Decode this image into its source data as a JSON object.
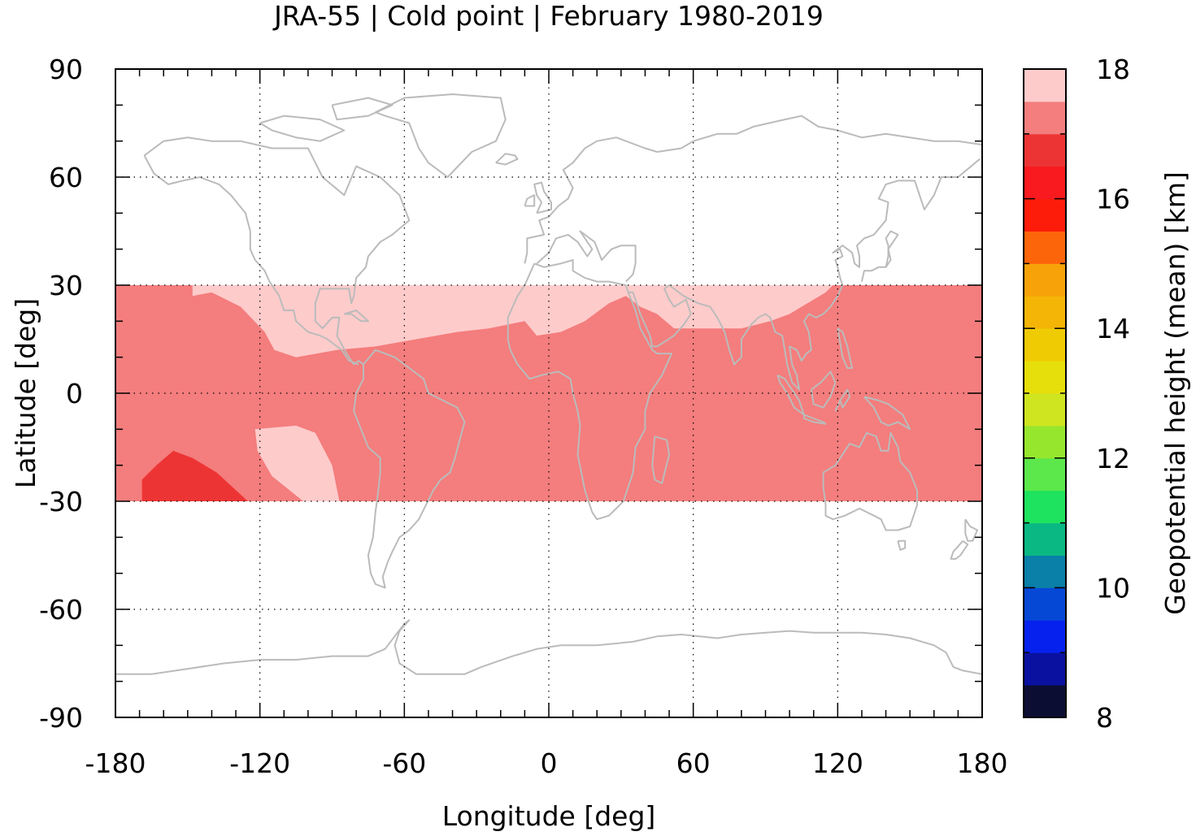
{
  "chart_data": {
    "type": "heatmap",
    "title": "JRA-55 | Cold point | February 1980-2019",
    "xlabel": "Longitude [deg]",
    "ylabel": "Latitude [deg]",
    "xlim": [
      -180,
      180
    ],
    "ylim": [
      -90,
      90
    ],
    "x_ticks": [
      -180,
      -120,
      -60,
      0,
      60,
      120,
      180
    ],
    "y_ticks": [
      -90,
      -60,
      -30,
      0,
      30,
      60,
      90
    ],
    "x_tick_labels": [
      "-180",
      "-120",
      "-60",
      "0",
      "60",
      "120",
      "180"
    ],
    "y_tick_labels": [
      "-90",
      "-60",
      "-30",
      "0",
      "30",
      "60",
      "90"
    ],
    "grid": true,
    "data_lat_range": [
      -30,
      30
    ],
    "colorbar": {
      "label": "Geopotential height (mean) [km]",
      "range": [
        8,
        18
      ],
      "ticks": [
        8,
        10,
        12,
        14,
        16,
        18
      ],
      "tick_labels": [
        "8",
        "10",
        "12",
        "14",
        "16",
        "18"
      ],
      "step": 0.5,
      "colors": [
        "#0c0d33",
        "#0a11a0",
        "#0621ee",
        "#0648d6",
        "#0a7fa8",
        "#0ab883",
        "#1ee35e",
        "#5ce84a",
        "#96e62e",
        "#cfe51f",
        "#e7df0b",
        "#efcb04",
        "#f4b507",
        "#f8a20a",
        "#fd650a",
        "#fd1c0a",
        "#f81a1e",
        "#ed3434",
        "#f47d7d",
        "#fecbcb"
      ]
    },
    "fields": {
      "background_value_km": "17-17.5",
      "background_color": "#f47d7d",
      "high_value_km": "17.5-18",
      "high_color": "#fecbcb",
      "low_value_km": "16.5-17",
      "low_color": "#ed3434"
    },
    "regions": [
      {
        "name": "northern high band",
        "value_range_km": [
          17.5,
          18
        ],
        "color": "#fecbcb",
        "outline_lonlat": [
          [
            -148,
            30
          ],
          [
            -148,
            27
          ],
          [
            -140,
            28
          ],
          [
            -128,
            24
          ],
          [
            -118,
            17
          ],
          [
            -114,
            12
          ],
          [
            -105,
            10
          ],
          [
            -88,
            12
          ],
          [
            -72,
            13
          ],
          [
            -55,
            15
          ],
          [
            -38,
            17
          ],
          [
            -25,
            18
          ],
          [
            -10,
            20
          ],
          [
            -5,
            16
          ],
          [
            5,
            17
          ],
          [
            15,
            20
          ],
          [
            25,
            25
          ],
          [
            32,
            27
          ],
          [
            38,
            24
          ],
          [
            45,
            22
          ],
          [
            52,
            18
          ],
          [
            65,
            18
          ],
          [
            80,
            18
          ],
          [
            92,
            20
          ],
          [
            100,
            22
          ],
          [
            110,
            26
          ],
          [
            115,
            28
          ],
          [
            118,
            30
          ]
        ]
      },
      {
        "name": "southern high patch",
        "value_range_km": [
          17.5,
          18
        ],
        "color": "#fecbcb",
        "outline_lonlat": [
          [
            -122,
            -10
          ],
          [
            -105,
            -9
          ],
          [
            -97,
            -11
          ],
          [
            -90,
            -20
          ],
          [
            -87,
            -30
          ],
          [
            -102,
            -30
          ],
          [
            -115,
            -23
          ],
          [
            -121,
            -16
          ]
        ]
      },
      {
        "name": "southwest low patch",
        "value_range_km": [
          16.5,
          17
        ],
        "color": "#ed3434",
        "outline_lonlat": [
          [
            -169,
            -30
          ],
          [
            -169,
            -24
          ],
          [
            -163,
            -20
          ],
          [
            -156,
            -16
          ],
          [
            -148,
            -18
          ],
          [
            -138,
            -22
          ],
          [
            -125,
            -30
          ]
        ]
      }
    ],
    "annotations": [
      "Coastlines overlay"
    ],
    "coastline_color": "#bbbbbb"
  }
}
